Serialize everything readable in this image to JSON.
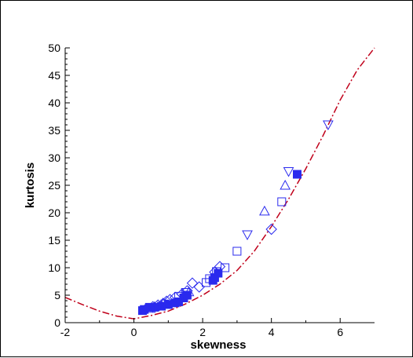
{
  "chart_data": {
    "type": "scatter",
    "title": "",
    "xlabel": "skewness",
    "ylabel": "kurtosis",
    "xlim": [
      -2,
      7
    ],
    "ylim": [
      0,
      50
    ],
    "x_ticks": [
      -2,
      0,
      2,
      4,
      6
    ],
    "y_ticks": [
      0,
      5,
      10,
      15,
      20,
      25,
      30,
      35,
      40,
      45,
      50
    ],
    "grid": false,
    "legend": "none",
    "marker_color": "#2a2aee",
    "curve_color": "#c0001a",
    "series": [
      {
        "marker": "filled-square",
        "points": [
          [
            0.25,
            2.2
          ],
          [
            0.3,
            2.4
          ],
          [
            0.45,
            2.8
          ],
          [
            0.6,
            2.8
          ],
          [
            0.8,
            3.0
          ],
          [
            1.0,
            3.3
          ],
          [
            1.2,
            3.6
          ],
          [
            1.3,
            3.8
          ],
          [
            1.45,
            4.5
          ],
          [
            1.55,
            5.0
          ],
          [
            2.3,
            7.7
          ],
          [
            2.35,
            8.2
          ],
          [
            2.45,
            9.0
          ],
          [
            4.75,
            27.0
          ]
        ]
      },
      {
        "marker": "open-diamond",
        "points": [
          [
            0.35,
            2.5
          ],
          [
            0.55,
            2.9
          ],
          [
            0.7,
            3.2
          ],
          [
            0.85,
            3.5
          ],
          [
            0.95,
            3.9
          ],
          [
            1.05,
            4.2
          ],
          [
            1.2,
            4.6
          ],
          [
            1.4,
            5.2
          ],
          [
            1.55,
            5.8
          ],
          [
            1.7,
            7.2
          ],
          [
            1.9,
            6.5
          ],
          [
            2.35,
            9.2
          ],
          [
            2.5,
            10.2
          ],
          [
            4.0,
            17.0
          ]
        ]
      },
      {
        "marker": "open-square",
        "points": [
          [
            0.5,
            2.6
          ],
          [
            0.9,
            3.4
          ],
          [
            1.3,
            4.8
          ],
          [
            1.5,
            5.5
          ],
          [
            2.1,
            7.3
          ],
          [
            2.2,
            8.0
          ],
          [
            2.4,
            9.3
          ],
          [
            2.65,
            10.0
          ],
          [
            3.0,
            13.0
          ],
          [
            4.3,
            22.0
          ]
        ]
      },
      {
        "marker": "open-triangle-up",
        "points": [
          [
            0.6,
            2.9
          ],
          [
            1.6,
            5.6
          ],
          [
            3.8,
            20.3
          ],
          [
            4.4,
            25.0
          ]
        ]
      },
      {
        "marker": "open-triangle-down",
        "points": [
          [
            3.3,
            16.0
          ],
          [
            4.5,
            27.5
          ],
          [
            5.65,
            36.0
          ]
        ]
      }
    ],
    "curve": {
      "style": "dash-dot",
      "points": [
        [
          -2.0,
          4.6
        ],
        [
          -1.5,
          3.3
        ],
        [
          -1.0,
          2.1
        ],
        [
          -0.5,
          1.2
        ],
        [
          0.0,
          0.7
        ],
        [
          0.5,
          1.3
        ],
        [
          1.0,
          2.1
        ],
        [
          1.5,
          3.4
        ],
        [
          2.0,
          5.0
        ],
        [
          2.5,
          7.0
        ],
        [
          3.0,
          9.5
        ],
        [
          3.5,
          13.0
        ],
        [
          4.0,
          17.5
        ],
        [
          4.5,
          22.5
        ],
        [
          5.0,
          28.0
        ],
        [
          5.5,
          34.0
        ],
        [
          6.0,
          40.5
        ],
        [
          6.5,
          46.0
        ],
        [
          7.0,
          50.0
        ]
      ]
    }
  }
}
